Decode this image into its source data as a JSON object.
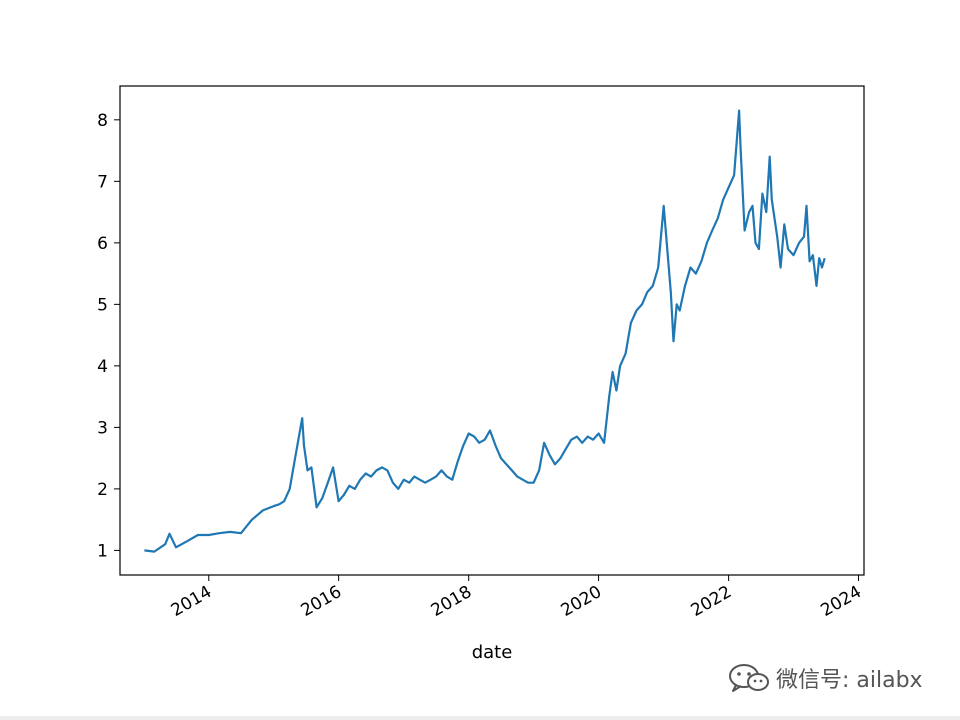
{
  "chart_data": {
    "type": "line",
    "title": "",
    "xlabel": "date",
    "ylabel": "",
    "x_ticks": [
      "2014",
      "2016",
      "2018",
      "2020",
      "2022",
      "2024"
    ],
    "y_ticks": [
      "1",
      "2",
      "3",
      "4",
      "5",
      "6",
      "7",
      "8"
    ],
    "xlim": [
      "2012-08-20",
      "2024-02-01"
    ],
    "ylim": [
      0.6,
      8.55
    ],
    "grid": false,
    "series": [
      {
        "color": "#1f77b4",
        "x": [
          "2013-01-04",
          "2013-03-01",
          "2013-05-01",
          "2013-05-25",
          "2013-07-01",
          "2013-09-01",
          "2013-11-01",
          "2014-01-01",
          "2014-03-01",
          "2014-05-01",
          "2014-07-01",
          "2014-09-01",
          "2014-11-01",
          "2015-01-01",
          "2015-02-01",
          "2015-03-01",
          "2015-04-01",
          "2015-05-01",
          "2015-06-10",
          "2015-06-20",
          "2015-07-10",
          "2015-08-01",
          "2015-08-30",
          "2015-10-01",
          "2015-11-01",
          "2015-12-01",
          "2016-01-01",
          "2016-01-30",
          "2016-03-01",
          "2016-04-01",
          "2016-05-01",
          "2016-06-01",
          "2016-07-01",
          "2016-08-01",
          "2016-09-01",
          "2016-10-01",
          "2016-11-01",
          "2016-12-01",
          "2017-01-01",
          "2017-02-01",
          "2017-03-01",
          "2017-04-01",
          "2017-05-01",
          "2017-06-01",
          "2017-07-01",
          "2017-08-01",
          "2017-09-01",
          "2017-10-01",
          "2017-11-01",
          "2017-12-01",
          "2018-01-01",
          "2018-02-01",
          "2018-03-01",
          "2018-04-01",
          "2018-05-01",
          "2018-06-01",
          "2018-07-01",
          "2018-08-01",
          "2018-09-01",
          "2018-10-01",
          "2018-11-01",
          "2018-12-01",
          "2019-01-01",
          "2019-02-01",
          "2019-03-01",
          "2019-04-01",
          "2019-05-01",
          "2019-06-01",
          "2019-07-01",
          "2019-08-01",
          "2019-09-01",
          "2019-10-01",
          "2019-11-01",
          "2019-12-01",
          "2020-01-01",
          "2020-02-01",
          "2020-03-01",
          "2020-03-20",
          "2020-04-10",
          "2020-05-01",
          "2020-06-01",
          "2020-07-01",
          "2020-08-01",
          "2020-09-01",
          "2020-10-01",
          "2020-11-01",
          "2020-12-01",
          "2021-01-01",
          "2021-02-10",
          "2021-02-25",
          "2021-03-15",
          "2021-04-01",
          "2021-05-01",
          "2021-06-01",
          "2021-07-01",
          "2021-08-01",
          "2021-09-01",
          "2021-10-01",
          "2021-11-01",
          "2021-12-01",
          "2022-01-01",
          "2022-02-01",
          "2022-03-01",
          "2022-03-10",
          "2022-04-01",
          "2022-04-26",
          "2022-05-15",
          "2022-06-01",
          "2022-06-20",
          "2022-07-10",
          "2022-08-01",
          "2022-08-20",
          "2022-09-01",
          "2022-10-01",
          "2022-10-20",
          "2022-11-10",
          "2022-12-01",
          "2023-01-01",
          "2023-02-01",
          "2023-03-01",
          "2023-03-15",
          "2023-04-01",
          "2023-04-20",
          "2023-05-10",
          "2023-05-25",
          "2023-06-10",
          "2023-06-25"
        ],
        "y": [
          1.0,
          0.98,
          1.1,
          1.27,
          1.05,
          1.15,
          1.25,
          1.25,
          1.28,
          1.3,
          1.28,
          1.5,
          1.65,
          1.72,
          1.75,
          1.8,
          2.0,
          2.5,
          3.15,
          2.7,
          2.3,
          2.35,
          1.7,
          1.85,
          2.1,
          2.35,
          1.8,
          1.9,
          2.05,
          2.0,
          2.15,
          2.25,
          2.2,
          2.3,
          2.35,
          2.3,
          2.1,
          2.0,
          2.15,
          2.1,
          2.2,
          2.15,
          2.1,
          2.15,
          2.2,
          2.3,
          2.2,
          2.15,
          2.45,
          2.7,
          2.9,
          2.85,
          2.75,
          2.8,
          2.95,
          2.7,
          2.5,
          2.4,
          2.3,
          2.2,
          2.15,
          2.1,
          2.1,
          2.3,
          2.75,
          2.55,
          2.4,
          2.5,
          2.65,
          2.8,
          2.85,
          2.75,
          2.85,
          2.8,
          2.9,
          2.75,
          3.5,
          3.9,
          3.6,
          4.0,
          4.2,
          4.7,
          4.9,
          5.0,
          5.2,
          5.3,
          5.6,
          6.6,
          5.2,
          4.4,
          5.0,
          4.9,
          5.3,
          5.6,
          5.5,
          5.7,
          6.0,
          6.2,
          6.4,
          6.7,
          6.9,
          7.1,
          8.15,
          7.5,
          6.2,
          6.5,
          6.6,
          6.0,
          5.9,
          6.8,
          6.5,
          7.4,
          6.7,
          6.1,
          5.6,
          6.3,
          5.9,
          5.8,
          6.0,
          6.1,
          6.6,
          5.7,
          5.8,
          5.3,
          5.75,
          5.6,
          5.75
        ]
      }
    ]
  },
  "watermark": {
    "icon": "wechat-icon",
    "text": "微信号: ailabx"
  }
}
